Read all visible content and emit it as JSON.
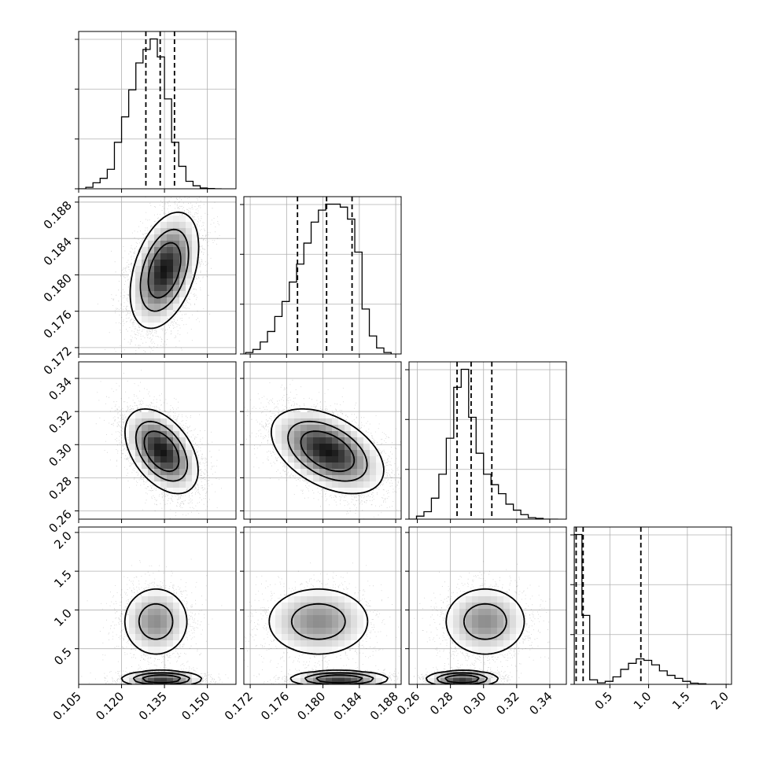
{
  "chart_data": {
    "type": "corner",
    "title": "",
    "parameters": [
      {
        "index": 0,
        "range": [
          0.105,
          0.16
        ],
        "ticks": [
          0.105,
          0.12,
          0.135,
          0.15
        ],
        "tick_labels": [
          "0.105",
          "0.120",
          "0.135",
          "0.150"
        ]
      },
      {
        "index": 1,
        "range": [
          0.1713,
          0.1886
        ],
        "ticks": [
          0.172,
          0.176,
          0.18,
          0.184,
          0.188
        ],
        "tick_labels": [
          "0.172",
          "0.176",
          "0.180",
          "0.184",
          "0.188"
        ]
      },
      {
        "index": 2,
        "range": [
          0.255,
          0.35
        ],
        "ticks": [
          0.26,
          0.28,
          0.3,
          0.32,
          0.34
        ],
        "tick_labels": [
          "0.26",
          "0.28",
          "0.30",
          "0.32",
          "0.34"
        ]
      },
      {
        "index": 3,
        "range": [
          0.04,
          2.07
        ],
        "ticks": [
          0.5,
          1.0,
          1.5,
          2.0
        ],
        "tick_labels": [
          "0.5",
          "1.0",
          "1.5",
          "2.0"
        ]
      }
    ],
    "histograms": [
      {
        "param": 0,
        "bins": [
          0.105,
          0.1075,
          0.11,
          0.1125,
          0.115,
          0.1175,
          0.12,
          0.1225,
          0.125,
          0.1275,
          0.13,
          0.1325,
          0.135,
          0.1375,
          0.14,
          0.1425,
          0.145,
          0.1475,
          0.15,
          0.1525,
          0.155
        ],
        "counts": [
          0.0,
          0.01,
          0.04,
          0.07,
          0.13,
          0.31,
          0.48,
          0.66,
          0.84,
          0.93,
          1.0,
          0.88,
          0.6,
          0.31,
          0.15,
          0.05,
          0.02,
          0.005,
          0.002,
          0.0
        ],
        "quantiles": [
          0.1285,
          0.1335,
          0.1385
        ]
      },
      {
        "param": 1,
        "bins": [
          0.1715,
          0.1723,
          0.1731,
          0.1739,
          0.1747,
          0.1755,
          0.1763,
          0.1771,
          0.1779,
          0.1787,
          0.1795,
          0.1803,
          0.1811,
          0.1819,
          0.1827,
          0.1835,
          0.1843,
          0.1851,
          0.1859,
          0.1867,
          0.1875
        ],
        "counts": [
          0.01,
          0.03,
          0.08,
          0.15,
          0.25,
          0.35,
          0.48,
          0.6,
          0.74,
          0.88,
          0.96,
          1.0,
          1.0,
          0.98,
          0.9,
          0.68,
          0.3,
          0.12,
          0.04,
          0.01
        ],
        "quantiles": [
          0.1772,
          0.1804,
          0.1832
        ]
      },
      {
        "param": 2,
        "bins": [
          0.255,
          0.2595,
          0.264,
          0.2685,
          0.273,
          0.2775,
          0.282,
          0.2865,
          0.291,
          0.2955,
          0.3,
          0.3045,
          0.309,
          0.3135,
          0.318,
          0.3225,
          0.327,
          0.3315,
          0.336,
          0.3405,
          0.345
        ],
        "counts": [
          0.0,
          0.02,
          0.05,
          0.14,
          0.3,
          0.54,
          0.88,
          1.0,
          0.68,
          0.44,
          0.3,
          0.23,
          0.17,
          0.1,
          0.06,
          0.03,
          0.01,
          0.005,
          0.0,
          0.0
        ],
        "quantiles": [
          0.284,
          0.2925,
          0.305
        ]
      },
      {
        "param": 3,
        "bins": [
          0.04,
          0.14,
          0.24,
          0.34,
          0.44,
          0.54,
          0.64,
          0.74,
          0.84,
          0.94,
          1.04,
          1.14,
          1.24,
          1.34,
          1.44,
          1.54,
          1.64,
          1.74,
          1.84,
          1.94,
          2.04
        ],
        "counts": [
          1.0,
          0.46,
          0.03,
          0.01,
          0.02,
          0.05,
          0.1,
          0.14,
          0.17,
          0.16,
          0.13,
          0.09,
          0.06,
          0.04,
          0.02,
          0.008,
          0.004,
          0.0,
          0.0,
          0.0
        ],
        "quantiles": [
          0.065,
          0.155,
          0.9
        ]
      }
    ],
    "joint": [
      {
        "xparam": 0,
        "yparam": 1,
        "peaks": [
          {
            "x": 0.135,
            "y": 0.1805,
            "sx": 0.0058,
            "sy": 0.0031,
            "rho": 0.4,
            "w": 1.0,
            "n": 6500
          }
        ]
      },
      {
        "xparam": 0,
        "yparam": 2,
        "peaks": [
          {
            "x": 0.134,
            "y": 0.296,
            "sx": 0.0062,
            "sy": 0.0124,
            "rho": -0.45,
            "w": 1.0,
            "n": 6500
          }
        ]
      },
      {
        "xparam": 1,
        "yparam": 2,
        "peaks": [
          {
            "x": 0.1805,
            "y": 0.296,
            "sx": 0.003,
            "sy": 0.0124,
            "rho": -0.45,
            "w": 1.0,
            "n": 6500
          }
        ]
      },
      {
        "xparam": 0,
        "yparam": 3,
        "peaks": [
          {
            "x": 0.132,
            "y": 0.85,
            "sx": 0.0062,
            "sy": 0.24,
            "rho": 0.0,
            "w": 0.35,
            "n": 2300
          },
          {
            "x": 0.134,
            "y": 0.11,
            "sx": 0.0068,
            "sy": 0.05,
            "rho": 0.0,
            "w": 0.65,
            "n": 2600
          }
        ]
      },
      {
        "xparam": 1,
        "yparam": 3,
        "peaks": [
          {
            "x": 0.1795,
            "y": 0.85,
            "sx": 0.0031,
            "sy": 0.24,
            "rho": 0.0,
            "w": 0.35,
            "n": 2300
          },
          {
            "x": 0.1818,
            "y": 0.11,
            "sx": 0.0026,
            "sy": 0.05,
            "rho": 0.0,
            "w": 0.65,
            "n": 2600
          }
        ]
      },
      {
        "xparam": 2,
        "yparam": 3,
        "peaks": [
          {
            "x": 0.301,
            "y": 0.85,
            "sx": 0.0135,
            "sy": 0.24,
            "rho": 0.0,
            "w": 0.35,
            "n": 2300
          },
          {
            "x": 0.287,
            "y": 0.11,
            "sx": 0.0105,
            "sy": 0.05,
            "rho": 0.0,
            "w": 0.65,
            "n": 2600
          }
        ]
      }
    ],
    "contour_levels": [
      0.12,
      0.35,
      0.62
    ],
    "grid": true,
    "legend": "none",
    "colors": {
      "points": "#000000",
      "lines": "#000000",
      "grid": "#b0b0b0"
    }
  }
}
